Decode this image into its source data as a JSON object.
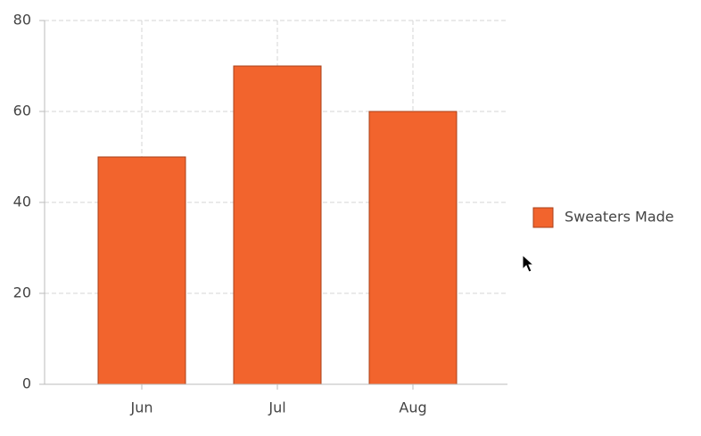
{
  "chart_data": {
    "type": "bar",
    "categories": [
      "Jun",
      "Jul",
      "Aug"
    ],
    "series": [
      {
        "name": "Sweaters Made",
        "color": "#f2642d",
        "values": [
          50,
          70,
          60
        ]
      }
    ],
    "ylim": [
      0,
      80
    ],
    "yticks": [
      0,
      20,
      40,
      60,
      80
    ],
    "grid": true,
    "legend": "right"
  }
}
